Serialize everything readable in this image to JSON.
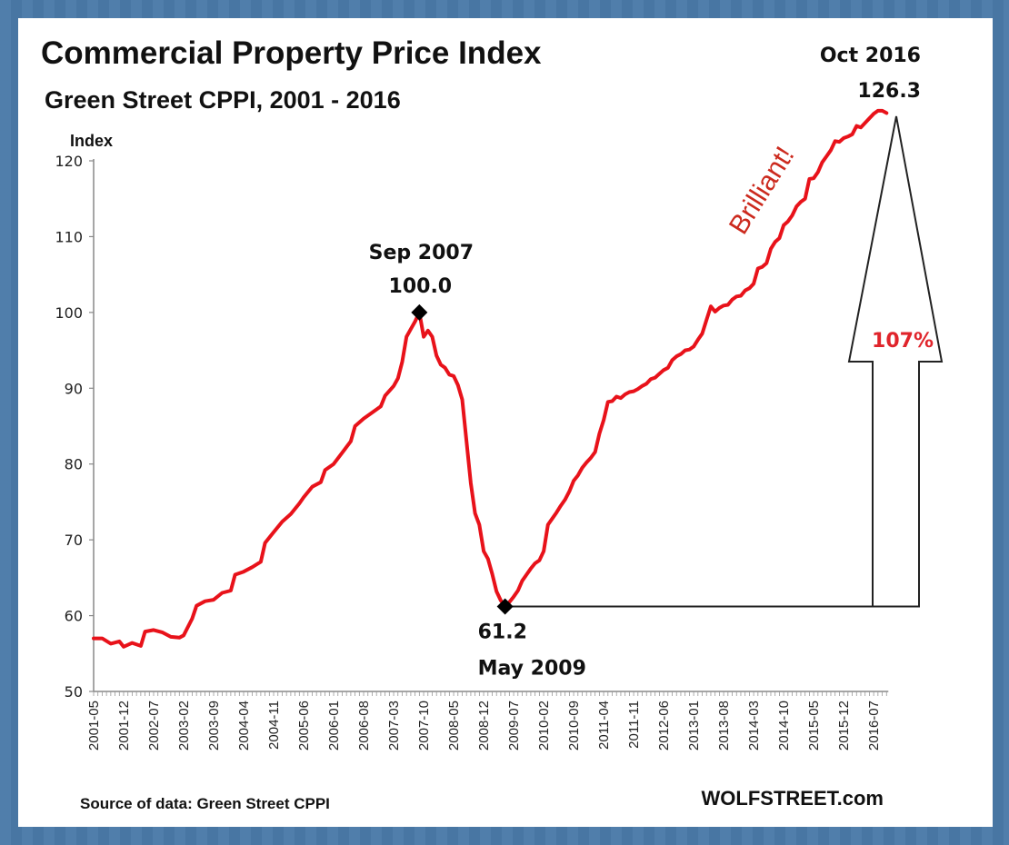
{
  "chart_data": {
    "type": "line",
    "title": "Commercial Property Price Index",
    "subtitle": "Green Street CPPI, 2001 - 2016",
    "ylabel": "Index",
    "xlabel": "",
    "ylim": [
      50,
      120
    ],
    "yticks": [
      50,
      60,
      70,
      80,
      90,
      100,
      110,
      120
    ],
    "xticks": [
      "2001-05",
      "2001-12",
      "2002-07",
      "2003-02",
      "2003-09",
      "2004-04",
      "2004-11",
      "2005-06",
      "2006-01",
      "2006-08",
      "2007-03",
      "2007-10",
      "2008-05",
      "2008-12",
      "2009-07",
      "2010-02",
      "2010-09",
      "2011-04",
      "2011-11",
      "2012-06",
      "2013-01",
      "2013-08",
      "2014-03",
      "2014-10",
      "2015-05",
      "2015-12",
      "2016-07"
    ],
    "grid": false,
    "series": [
      {
        "name": "Green Street CPPI",
        "color": "#e8121a",
        "points": [
          [
            "2001-05",
            57.0
          ],
          [
            "2001-07",
            57.0
          ],
          [
            "2001-09",
            56.3
          ],
          [
            "2001-11",
            56.6
          ],
          [
            "2001-12",
            55.9
          ],
          [
            "2002-02",
            56.4
          ],
          [
            "2002-04",
            56.0
          ],
          [
            "2002-05",
            57.9
          ],
          [
            "2002-07",
            58.1
          ],
          [
            "2002-09",
            57.8
          ],
          [
            "2002-11",
            57.2
          ],
          [
            "2003-01",
            57.1
          ],
          [
            "2003-02",
            57.4
          ],
          [
            "2003-04",
            59.6
          ],
          [
            "2003-05",
            61.3
          ],
          [
            "2003-07",
            61.9
          ],
          [
            "2003-09",
            62.1
          ],
          [
            "2003-11",
            63.0
          ],
          [
            "2004-01",
            63.3
          ],
          [
            "2004-02",
            65.4
          ],
          [
            "2004-04",
            65.8
          ],
          [
            "2004-06",
            66.4
          ],
          [
            "2004-08",
            67.1
          ],
          [
            "2004-09",
            69.6
          ],
          [
            "2004-11",
            71.0
          ],
          [
            "2005-01",
            72.4
          ],
          [
            "2005-03",
            73.4
          ],
          [
            "2005-05",
            74.8
          ],
          [
            "2005-06",
            75.6
          ],
          [
            "2005-08",
            77.0
          ],
          [
            "2005-10",
            77.6
          ],
          [
            "2005-11",
            79.2
          ],
          [
            "2006-01",
            80.0
          ],
          [
            "2006-03",
            81.5
          ],
          [
            "2006-05",
            83.0
          ],
          [
            "2006-06",
            85.0
          ],
          [
            "2006-08",
            86.0
          ],
          [
            "2006-10",
            86.8
          ],
          [
            "2006-12",
            87.6
          ],
          [
            "2007-01",
            89.0
          ],
          [
            "2007-03",
            90.3
          ],
          [
            "2007-04",
            91.3
          ],
          [
            "2007-05",
            93.5
          ],
          [
            "2007-06",
            96.8
          ],
          [
            "2007-07",
            97.8
          ],
          [
            "2007-08",
            98.8
          ],
          [
            "2007-09",
            100.0
          ],
          [
            "2007-10",
            96.8
          ],
          [
            "2007-11",
            97.6
          ],
          [
            "2007-12",
            96.8
          ],
          [
            "2008-01",
            94.3
          ],
          [
            "2008-02",
            93.1
          ],
          [
            "2008-03",
            92.7
          ],
          [
            "2008-04",
            91.8
          ],
          [
            "2008-05",
            91.6
          ],
          [
            "2008-06",
            90.4
          ],
          [
            "2008-07",
            88.5
          ],
          [
            "2008-08",
            83.0
          ],
          [
            "2008-09",
            77.5
          ],
          [
            "2008-10",
            73.5
          ],
          [
            "2008-11",
            72.0
          ],
          [
            "2008-12",
            68.5
          ],
          [
            "2009-01",
            67.5
          ],
          [
            "2009-02",
            65.5
          ],
          [
            "2009-03",
            63.2
          ],
          [
            "2009-04",
            62.0
          ],
          [
            "2009-05",
            61.2
          ],
          [
            "2009-06",
            61.8
          ],
          [
            "2009-07",
            62.5
          ],
          [
            "2009-08",
            63.3
          ],
          [
            "2009-09",
            64.6
          ],
          [
            "2009-10",
            65.4
          ],
          [
            "2009-11",
            66.2
          ],
          [
            "2009-12",
            66.9
          ],
          [
            "2010-01",
            67.3
          ],
          [
            "2010-02",
            68.5
          ],
          [
            "2010-03",
            72.0
          ],
          [
            "2010-04",
            72.8
          ],
          [
            "2010-05",
            73.6
          ],
          [
            "2010-06",
            74.5
          ],
          [
            "2010-07",
            75.3
          ],
          [
            "2010-08",
            76.4
          ],
          [
            "2010-09",
            77.8
          ],
          [
            "2010-10",
            78.5
          ],
          [
            "2010-11",
            79.5
          ],
          [
            "2010-12",
            80.2
          ],
          [
            "2011-01",
            80.8
          ],
          [
            "2011-02",
            81.6
          ],
          [
            "2011-03",
            84.0
          ],
          [
            "2011-04",
            85.8
          ],
          [
            "2011-05",
            88.2
          ],
          [
            "2011-06",
            88.3
          ],
          [
            "2011-07",
            88.9
          ],
          [
            "2011-08",
            88.7
          ],
          [
            "2011-09",
            89.2
          ],
          [
            "2011-10",
            89.5
          ],
          [
            "2011-11",
            89.6
          ],
          [
            "2011-12",
            89.9
          ],
          [
            "2012-01",
            90.3
          ],
          [
            "2012-02",
            90.6
          ],
          [
            "2012-03",
            91.2
          ],
          [
            "2012-04",
            91.4
          ],
          [
            "2012-05",
            91.9
          ],
          [
            "2012-06",
            92.4
          ],
          [
            "2012-07",
            92.7
          ],
          [
            "2012-08",
            93.7
          ],
          [
            "2012-09",
            94.2
          ],
          [
            "2012-10",
            94.5
          ],
          [
            "2012-11",
            95.0
          ],
          [
            "2012-12",
            95.1
          ],
          [
            "2013-01",
            95.5
          ],
          [
            "2013-02",
            96.4
          ],
          [
            "2013-03",
            97.2
          ],
          [
            "2013-04",
            99.0
          ],
          [
            "2013-05",
            100.8
          ],
          [
            "2013-06",
            100.1
          ],
          [
            "2013-07",
            100.6
          ],
          [
            "2013-08",
            100.9
          ],
          [
            "2013-09",
            101.0
          ],
          [
            "2013-10",
            101.7
          ],
          [
            "2013-11",
            102.1
          ],
          [
            "2013-12",
            102.2
          ],
          [
            "2014-01",
            102.9
          ],
          [
            "2014-02",
            103.2
          ],
          [
            "2014-03",
            103.8
          ],
          [
            "2014-04",
            105.8
          ],
          [
            "2014-05",
            106.0
          ],
          [
            "2014-06",
            106.5
          ],
          [
            "2014-07",
            108.4
          ],
          [
            "2014-08",
            109.3
          ],
          [
            "2014-09",
            109.8
          ],
          [
            "2014-10",
            111.5
          ],
          [
            "2014-11",
            112.0
          ],
          [
            "2014-12",
            112.8
          ],
          [
            "2015-01",
            114.0
          ],
          [
            "2015-02",
            114.6
          ],
          [
            "2015-03",
            115.0
          ],
          [
            "2015-04",
            117.6
          ],
          [
            "2015-05",
            117.7
          ],
          [
            "2015-06",
            118.5
          ],
          [
            "2015-07",
            119.8
          ],
          [
            "2015-08",
            120.6
          ],
          [
            "2015-09",
            121.4
          ],
          [
            "2015-10",
            122.6
          ],
          [
            "2015-11",
            122.5
          ],
          [
            "2015-12",
            123.0
          ],
          [
            "2016-01",
            123.2
          ],
          [
            "2016-02",
            123.5
          ],
          [
            "2016-03",
            124.6
          ],
          [
            "2016-04",
            124.4
          ],
          [
            "2016-05",
            125.0
          ],
          [
            "2016-06",
            125.6
          ],
          [
            "2016-07",
            126.2
          ],
          [
            "2016-08",
            126.6
          ],
          [
            "2016-09",
            126.6
          ],
          [
            "2016-10",
            126.3
          ]
        ]
      }
    ],
    "markers": [
      {
        "date": "2007-09",
        "value": 100.0,
        "label_top": "Sep 2007",
        "label_bottom": "100.0"
      },
      {
        "date": "2009-05",
        "value": 61.2,
        "label_top": "61.2",
        "label_bottom": "May 2009"
      }
    ],
    "annotations": {
      "peak_label_date": "Oct 2016",
      "peak_label_value": "126.3",
      "comment": "Brilliant!",
      "comment_color": "#cc2a1e",
      "gain_label": "107%",
      "gain_color": "#e0242b",
      "gain_from": 61.2,
      "gain_to": 126.3
    },
    "source": "Source of data: Green Street CPPI",
    "brand": "WOLFSTREET.com"
  }
}
